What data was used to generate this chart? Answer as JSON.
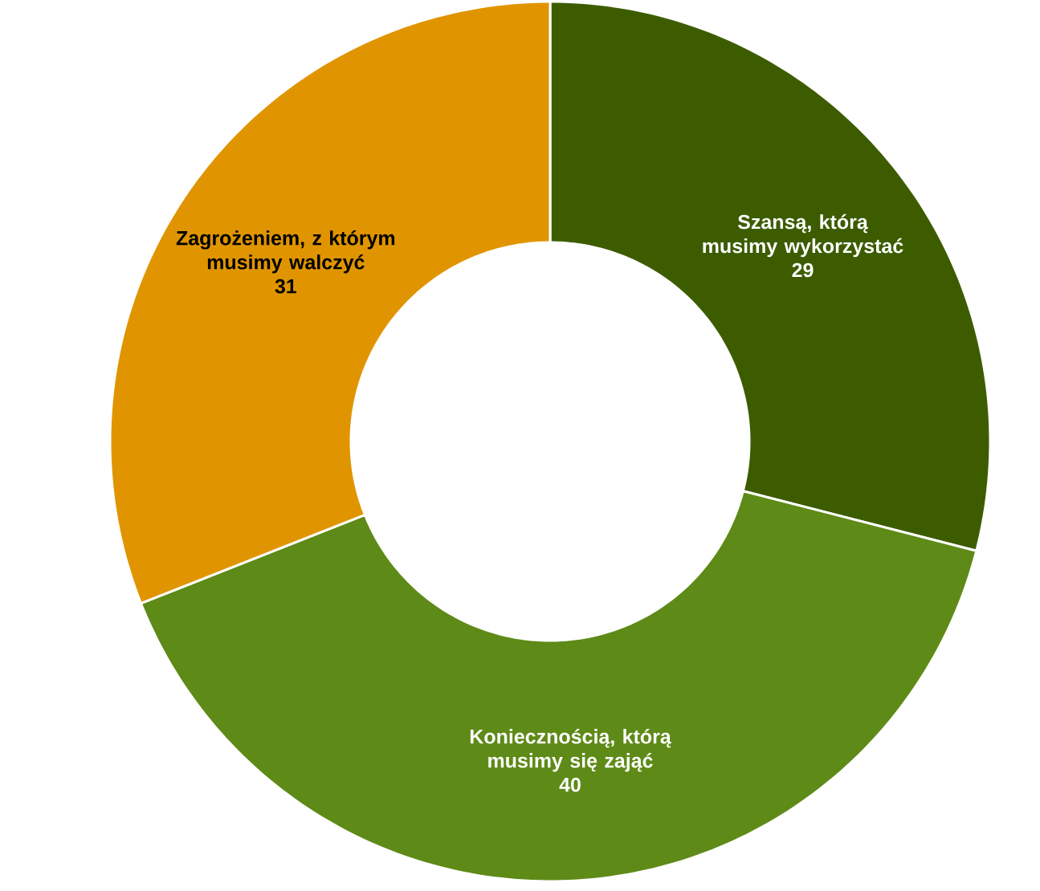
{
  "chart_data": {
    "type": "donut",
    "categories": [
      "Szansą, którą musimy wykorzystać",
      "Koniecznością, którą musimy się zająć",
      "Zagrożeniem, z którym musimy walczyć"
    ],
    "values": [
      29,
      40,
      31
    ],
    "colors": [
      "#3d5c00",
      "#5e8a17",
      "#e09500"
    ],
    "data_labels": true
  }
}
